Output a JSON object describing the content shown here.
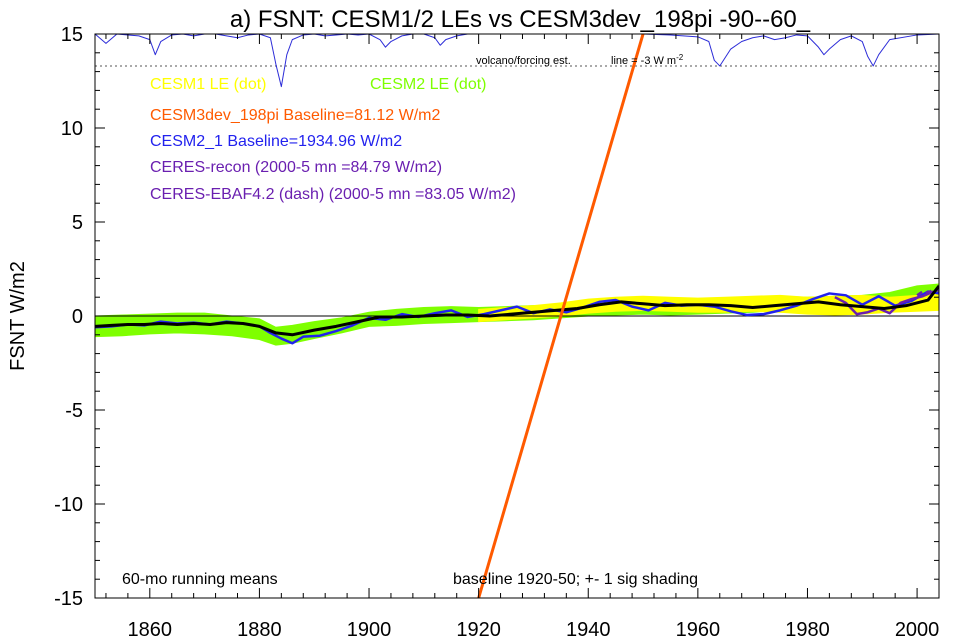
{
  "chart_data": {
    "type": "line",
    "title": "a) FSNT: CESM1/2 LEs vs CESM3dev_198pi -90--60_",
    "ylabel": "FSNT W/m2",
    "xlim": [
      1850,
      2004
    ],
    "ylim": [
      -15,
      15
    ],
    "x_ticks": [
      1860,
      1880,
      1900,
      1920,
      1940,
      1960,
      1980,
      2000
    ],
    "y_ticks": [
      -15,
      -10,
      -5,
      0,
      5,
      10,
      15
    ],
    "legend": {
      "cesm1_le": "CESM1 LE (dot)",
      "cesm2_le": "CESM2 LE (dot)",
      "cesm3dev": "CESM3dev_198pi Baseline=81.12 W/m2",
      "cesm2_1": "CESM2_1 Baseline=1934.96 W/m2",
      "ceres_recon": "CERES-recon (2000-5 mn =84.79 W/m2)",
      "ceres_ebaf": "CERES-EBAF4.2 (dash) (2000-5 mn =83.05 W/m2)"
    },
    "notes": {
      "running_means": "60-mo running means",
      "baseline": "baseline 1920-50; +- 1 sig shading",
      "volcano": "volcano/forcing est.",
      "volcano_line": "line = -3 W m"
    },
    "colors": {
      "cesm1": "#ffff00",
      "cesm2": "#7fff00",
      "cesm3": "#ff5a00",
      "cesm2_1": "#2222ee",
      "ceres_recon": "#6a1fb0",
      "ceres_ebaf": "#6a1fb0",
      "volcano": "#2d2dd8",
      "ensemble_mean": "#000000"
    },
    "series": [
      {
        "name": "CESM1 LE (dot)",
        "role": "band",
        "x": [
          1920,
          1925,
          1930,
          1935,
          1940,
          1945,
          1950,
          1955,
          1960,
          1965,
          1970,
          1975,
          1980,
          1985,
          1990,
          1995,
          2000,
          2004
        ],
        "upper": [
          0.35,
          0.45,
          0.55,
          0.7,
          0.9,
          1.0,
          1.05,
          1.0,
          0.95,
          1.0,
          1.05,
          1.1,
          1.0,
          1.05,
          1.1,
          1.0,
          1.1,
          1.15
        ],
        "lower": [
          -0.3,
          -0.2,
          -0.1,
          0.0,
          0.15,
          0.25,
          0.3,
          0.25,
          0.2,
          0.2,
          0.25,
          0.2,
          0.1,
          0.05,
          0.1,
          0.2,
          0.25,
          0.3
        ]
      },
      {
        "name": "CESM2 LE (dot)",
        "role": "band",
        "x": [
          1850,
          1855,
          1860,
          1865,
          1870,
          1875,
          1880,
          1883,
          1886,
          1890,
          1895,
          1900,
          1905,
          1910,
          1915,
          1920,
          1925,
          1930,
          1935,
          1940,
          1945,
          1950,
          1955,
          1960,
          1965,
          1970,
          1975,
          1980,
          1985,
          1990,
          1995,
          2000,
          2004
        ],
        "upper": [
          0.0,
          0.05,
          0.1,
          0.15,
          0.15,
          0.0,
          -0.15,
          -0.6,
          -0.5,
          -0.3,
          -0.1,
          0.2,
          0.35,
          0.45,
          0.5,
          0.45,
          0.5,
          0.55,
          0.6,
          0.7,
          0.75,
          0.8,
          0.75,
          0.8,
          0.85,
          0.95,
          1.05,
          1.0,
          1.05,
          1.1,
          1.25,
          1.6,
          1.7
        ],
        "lower": [
          -1.1,
          -1.05,
          -0.95,
          -0.9,
          -0.95,
          -1.05,
          -1.25,
          -1.55,
          -1.45,
          -1.2,
          -0.9,
          -0.55,
          -0.5,
          -0.4,
          -0.35,
          -0.3,
          -0.25,
          -0.2,
          -0.1,
          0.0,
          0.05,
          0.1,
          0.05,
          0.1,
          0.15,
          0.2,
          0.3,
          0.3,
          0.35,
          0.35,
          0.45,
          0.6,
          0.7
        ]
      },
      {
        "name": "CESM3dev_198pi Baseline=81.12 W/m2",
        "x": [
          1920,
          1950
        ],
        "y": [
          -15,
          15
        ]
      },
      {
        "name": "CESM2_1 Baseline=1934.96 W/m2",
        "x": [
          1850,
          1853,
          1856,
          1859,
          1862,
          1865,
          1868,
          1871,
          1874,
          1877,
          1880,
          1882,
          1884,
          1886,
          1888,
          1891,
          1894,
          1897,
          1900,
          1903,
          1906,
          1909,
          1912,
          1915,
          1918,
          1921,
          1924,
          1927,
          1930,
          1933,
          1936,
          1939,
          1942,
          1945,
          1948,
          1951,
          1954,
          1957,
          1960,
          1963,
          1966,
          1969,
          1972,
          1975,
          1978,
          1981,
          1984,
          1987,
          1990,
          1993,
          1996,
          1999,
          2002,
          2004
        ],
        "y": [
          -0.6,
          -0.55,
          -0.45,
          -0.5,
          -0.3,
          -0.4,
          -0.35,
          -0.45,
          -0.3,
          -0.4,
          -0.55,
          -0.9,
          -1.2,
          -1.45,
          -1.1,
          -1.05,
          -0.8,
          -0.5,
          -0.1,
          -0.2,
          0.1,
          -0.05,
          0.15,
          0.3,
          -0.05,
          0.1,
          0.3,
          0.5,
          0.15,
          0.35,
          0.2,
          0.45,
          0.75,
          0.85,
          0.5,
          0.3,
          0.7,
          0.55,
          0.6,
          0.5,
          0.25,
          0.05,
          0.1,
          0.3,
          0.55,
          0.9,
          1.2,
          1.1,
          0.6,
          1.05,
          0.55,
          0.8,
          1.3,
          1.2
        ]
      },
      {
        "name": "CERES-recon (2000-5 mn =84.79 W/m2)",
        "x": [
          1985,
          1987,
          1989,
          1991,
          1993,
          1995,
          1997,
          1999,
          2001,
          2003
        ],
        "y": [
          1.0,
          0.7,
          0.1,
          0.2,
          0.4,
          0.15,
          0.7,
          0.9,
          1.05,
          1.3
        ]
      },
      {
        "name": "CERES-EBAF4.2 (dash) (2000-5 mn =83.05 W/m2)",
        "x": [
          2000,
          2001,
          2002,
          2003,
          2004
        ],
        "y": [
          1.1,
          1.3,
          1.25,
          1.4,
          1.35
        ]
      },
      {
        "name": "ensemble-mean",
        "x": [
          1850,
          1853,
          1856,
          1859,
          1862,
          1865,
          1868,
          1871,
          1874,
          1877,
          1880,
          1883,
          1886,
          1890,
          1894,
          1898,
          1902,
          1906,
          1910,
          1914,
          1918,
          1922,
          1926,
          1930,
          1934,
          1938,
          1942,
          1946,
          1950,
          1954,
          1958,
          1962,
          1966,
          1970,
          1974,
          1978,
          1982,
          1986,
          1990,
          1994,
          1998,
          2002,
          2004
        ],
        "y": [
          -0.55,
          -0.5,
          -0.45,
          -0.45,
          -0.4,
          -0.45,
          -0.4,
          -0.45,
          -0.35,
          -0.4,
          -0.55,
          -0.9,
          -1.0,
          -0.75,
          -0.55,
          -0.3,
          -0.05,
          -0.05,
          0.0,
          0.05,
          0.05,
          0.0,
          0.1,
          0.2,
          0.3,
          0.4,
          0.6,
          0.75,
          0.65,
          0.55,
          0.6,
          0.6,
          0.55,
          0.45,
          0.55,
          0.65,
          0.75,
          0.6,
          0.5,
          0.4,
          0.55,
          0.85,
          1.6
        ]
      },
      {
        "name": "volcano-forcing",
        "x": [
          1850,
          1852,
          1854,
          1856,
          1858,
          1860,
          1861,
          1862,
          1864,
          1866,
          1868,
          1870,
          1872,
          1874,
          1876,
          1878,
          1880,
          1882,
          1883,
          1884,
          1885,
          1886,
          1888,
          1890,
          1892,
          1894,
          1896,
          1898,
          1900,
          1902,
          1903,
          1904,
          1906,
          1908,
          1910,
          1912,
          1913,
          1914,
          1916,
          1918,
          1920,
          1925,
          1930,
          1935,
          1940,
          1945,
          1950,
          1955,
          1960,
          1962,
          1963,
          1964,
          1966,
          1968,
          1970,
          1972,
          1974,
          1976,
          1978,
          1980,
          1982,
          1983,
          1984,
          1986,
          1988,
          1990,
          1991,
          1992,
          1993,
          1995,
          2000,
          2004
        ],
        "y": [
          15.0,
          14.5,
          15.0,
          14.95,
          14.9,
          14.7,
          13.9,
          14.6,
          14.95,
          15.0,
          14.9,
          15.0,
          15.0,
          14.9,
          14.8,
          14.95,
          15.0,
          14.8,
          13.4,
          12.2,
          13.9,
          14.7,
          14.95,
          15.0,
          14.9,
          14.95,
          15.0,
          14.95,
          15.0,
          14.7,
          14.3,
          14.6,
          14.9,
          15.0,
          15.0,
          14.8,
          14.4,
          14.7,
          14.9,
          15.0,
          15.0,
          15.0,
          15.0,
          15.0,
          15.0,
          15.0,
          15.0,
          14.95,
          14.85,
          14.6,
          13.6,
          13.3,
          14.2,
          14.6,
          14.8,
          14.9,
          14.7,
          14.8,
          14.95,
          14.9,
          14.3,
          13.9,
          14.2,
          14.7,
          14.9,
          14.6,
          13.8,
          13.3,
          13.9,
          14.7,
          14.95,
          15.0
        ]
      }
    ],
    "reference_lines": [
      {
        "name": "zero-line",
        "y": 0
      },
      {
        "name": "volcano-baseline",
        "y": 13.3
      }
    ],
    "grid": false
  }
}
